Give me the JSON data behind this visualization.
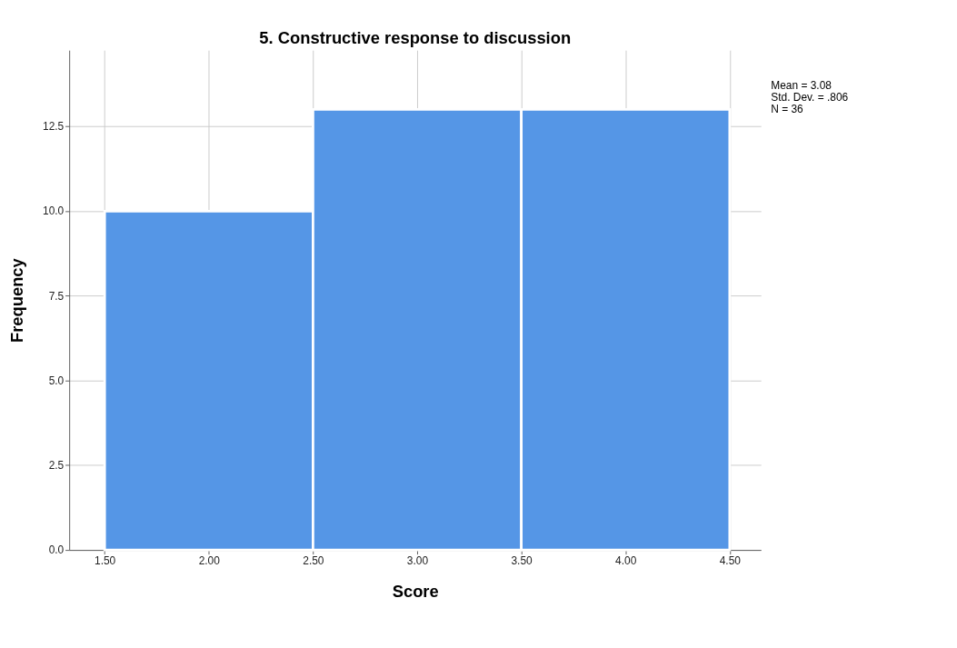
{
  "chart_data": {
    "type": "histogram",
    "title": "5. Constructive response to discussion",
    "xlabel": "Score",
    "ylabel": "Frequency",
    "bins": [
      1.5,
      2.5,
      3.5,
      4.5
    ],
    "values": [
      10,
      13,
      13
    ],
    "color": "#5596e6",
    "xlim": [
      1.33,
      4.65
    ],
    "ylim": [
      0,
      14.75
    ],
    "xticks": [
      {
        "value": 1.5,
        "label": "1.50"
      },
      {
        "value": 2,
        "label": "2.00"
      },
      {
        "value": 2.5,
        "label": "2.50"
      },
      {
        "value": 3,
        "label": "3.00"
      },
      {
        "value": 3.5,
        "label": "3.50"
      },
      {
        "value": 4,
        "label": "4.00"
      },
      {
        "value": 4.5,
        "label": "4.50"
      }
    ],
    "yticks": [
      {
        "value": 0,
        "label": "0.0"
      },
      {
        "value": 2.5,
        "label": "2.5"
      },
      {
        "value": 5,
        "label": "5.0"
      },
      {
        "value": 7.5,
        "label": "7.5"
      },
      {
        "value": 10,
        "label": "10.0"
      },
      {
        "value": 12.5,
        "label": "12.5"
      }
    ],
    "grid": true,
    "annotations": [
      "Mean = 3.08",
      "Std. Dev. = .806",
      "N = 36"
    ]
  }
}
